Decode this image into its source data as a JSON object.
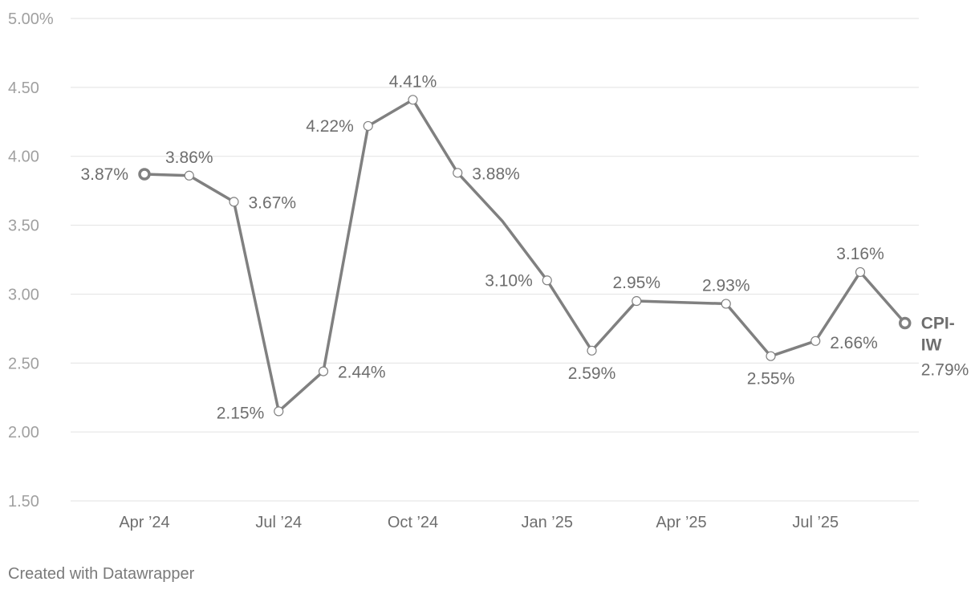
{
  "chart_data": {
    "type": "line",
    "title": "",
    "xlabel": "",
    "ylabel": "",
    "ylim": [
      1.5,
      5.0
    ],
    "grid": true,
    "y_ticks": [
      {
        "value": 5.0,
        "label": "5.00%"
      },
      {
        "value": 4.5,
        "label": "4.50"
      },
      {
        "value": 4.0,
        "label": "4.00"
      },
      {
        "value": 3.5,
        "label": "3.50"
      },
      {
        "value": 3.0,
        "label": "3.00"
      },
      {
        "value": 2.5,
        "label": "2.50"
      },
      {
        "value": 2.0,
        "label": "2.00"
      },
      {
        "value": 1.5,
        "label": "1.50"
      }
    ],
    "x_ticks": [
      {
        "date": "2024-04",
        "label": "Apr ’24"
      },
      {
        "date": "2024-07",
        "label": "Jul ’24"
      },
      {
        "date": "2024-10",
        "label": "Oct ’24"
      },
      {
        "date": "2025-01",
        "label": "Jan ’25"
      },
      {
        "date": "2025-04",
        "label": "Apr ’25"
      },
      {
        "date": "2025-07",
        "label": "Jul ’25"
      }
    ],
    "series": [
      {
        "name": "CPI-IW",
        "color": "#808080",
        "points": [
          {
            "date": "2024-04",
            "value": 3.87,
            "label": "3.87%"
          },
          {
            "date": "2024-05",
            "value": 3.86,
            "label": "3.86%"
          },
          {
            "date": "2024-06",
            "value": 3.67,
            "label": "3.67%"
          },
          {
            "date": "2024-07",
            "value": 2.15,
            "label": "2.15%"
          },
          {
            "date": "2024-08",
            "value": 2.44,
            "label": "2.44%"
          },
          {
            "date": "2024-09",
            "value": 4.22,
            "label": "4.22%"
          },
          {
            "date": "2024-10",
            "value": 4.41,
            "label": "4.41%"
          },
          {
            "date": "2024-11",
            "value": 3.88,
            "label": "3.88%"
          },
          {
            "date": "2024-12",
            "value": 3.53,
            "label": ""
          },
          {
            "date": "2025-01",
            "value": 3.1,
            "label": "3.10%"
          },
          {
            "date": "2025-02",
            "value": 2.59,
            "label": "2.59%"
          },
          {
            "date": "2025-03",
            "value": 2.95,
            "label": "2.95%"
          },
          {
            "date": "2025-04",
            "value": 2.94,
            "label": ""
          },
          {
            "date": "2025-05",
            "value": 2.93,
            "label": "2.93%"
          },
          {
            "date": "2025-06",
            "value": 2.55,
            "label": "2.55%"
          },
          {
            "date": "2025-07",
            "value": 2.66,
            "label": "2.66%"
          },
          {
            "date": "2025-08",
            "value": 3.16,
            "label": "3.16%"
          },
          {
            "date": "2025-09",
            "value": 2.79,
            "label": "2.79%"
          }
        ]
      }
    ]
  },
  "footer": {
    "credit": "Created with Datawrapper"
  }
}
